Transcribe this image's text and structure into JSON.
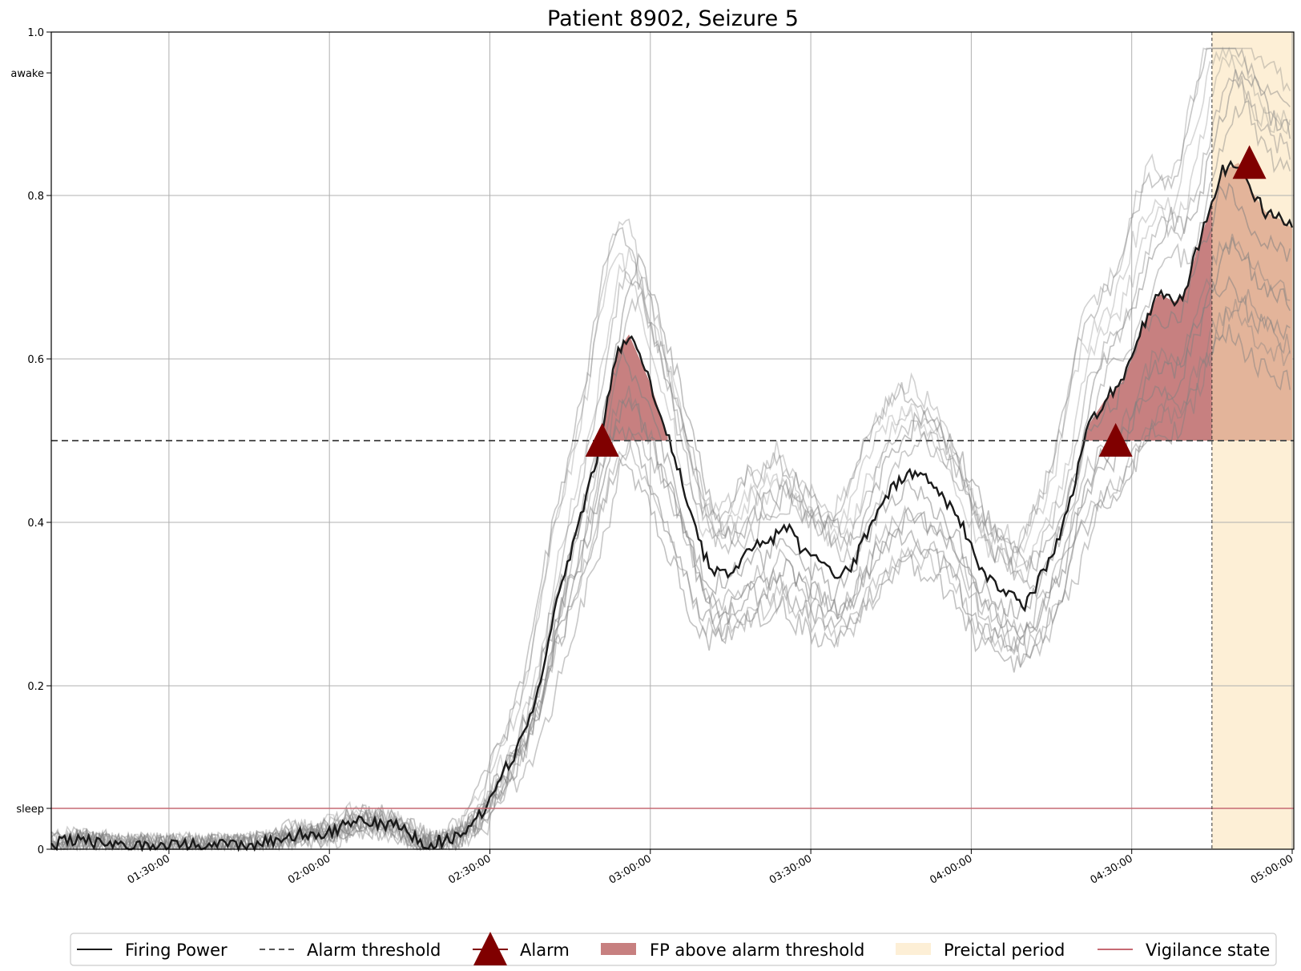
{
  "chart_data": {
    "type": "line",
    "title": "Patient 8902, Seizure 5",
    "xlabel": "",
    "ylabel": "",
    "x_tick_labels": [
      "01:30:00",
      "02:00:00",
      "02:30:00",
      "03:00:00",
      "03:30:00",
      "04:00:00",
      "04:30:00",
      "05:00:00"
    ],
    "x_tick_minutes": [
      90,
      120,
      150,
      180,
      210,
      240,
      270,
      300
    ],
    "xlim_minutes": [
      68,
      300.3
    ],
    "ylim": [
      0,
      1.0
    ],
    "y_ticks": [
      {
        "value": 0.0,
        "label": "0"
      },
      {
        "value": 0.05,
        "label": "sleep"
      },
      {
        "value": 0.2,
        "label": "0.2"
      },
      {
        "value": 0.4,
        "label": "0.4"
      },
      {
        "value": 0.6,
        "label": "0.6"
      },
      {
        "value": 0.8,
        "label": "0.8"
      },
      {
        "value": 0.95,
        "label": "awake"
      },
      {
        "value": 1.0,
        "label": "1.0"
      }
    ],
    "grid": true,
    "alarm_threshold": 0.5,
    "vigilance_state_level": 0.05,
    "preictal_period": {
      "start_minute": 285,
      "end_minute": 300.3
    },
    "alarms": [
      {
        "minute": 171,
        "value": 0.5
      },
      {
        "minute": 267,
        "value": 0.5
      },
      {
        "minute": 292,
        "value": 0.84
      }
    ],
    "firing_power": {
      "x_minutes": [
        68,
        70,
        75,
        80,
        85,
        90,
        95,
        100,
        105,
        110,
        115,
        120,
        125,
        128,
        130,
        132,
        135,
        138,
        140,
        142,
        145,
        147,
        150,
        152,
        155,
        158,
        160,
        162,
        165,
        168,
        170,
        172,
        174,
        176,
        178,
        180,
        182,
        184,
        186,
        188,
        190,
        192,
        195,
        198,
        200,
        202,
        205,
        208,
        210,
        212,
        215,
        218,
        220,
        222,
        225,
        228,
        230,
        232,
        235,
        238,
        240,
        242,
        245,
        248,
        250,
        252,
        255,
        258,
        260,
        262,
        265,
        268,
        270,
        272,
        275,
        278,
        280,
        282,
        285,
        287,
        290,
        292,
        295,
        298,
        300
      ],
      "values": [
        0.0,
        0.01,
        0.01,
        0.005,
        0.005,
        0.005,
        0.005,
        0.005,
        0.005,
        0.01,
        0.02,
        0.02,
        0.035,
        0.035,
        0.03,
        0.03,
        0.02,
        0.0,
        0.01,
        0.01,
        0.02,
        0.03,
        0.06,
        0.09,
        0.12,
        0.17,
        0.22,
        0.29,
        0.36,
        0.43,
        0.48,
        0.55,
        0.61,
        0.63,
        0.6,
        0.57,
        0.53,
        0.49,
        0.45,
        0.4,
        0.36,
        0.34,
        0.34,
        0.36,
        0.38,
        0.37,
        0.4,
        0.37,
        0.36,
        0.35,
        0.33,
        0.35,
        0.38,
        0.41,
        0.44,
        0.46,
        0.46,
        0.45,
        0.43,
        0.4,
        0.37,
        0.34,
        0.32,
        0.31,
        0.3,
        0.32,
        0.36,
        0.41,
        0.47,
        0.52,
        0.55,
        0.57,
        0.6,
        0.64,
        0.68,
        0.67,
        0.68,
        0.73,
        0.79,
        0.83,
        0.84,
        0.81,
        0.78,
        0.77,
        0.76
      ]
    },
    "legend": {
      "position": "bottom",
      "entries": [
        {
          "label": "Firing Power",
          "symbol": "solid-line"
        },
        {
          "label": "Alarm threshold",
          "symbol": "dashed-line"
        },
        {
          "label": "Alarm",
          "symbol": "triangle"
        },
        {
          "label": "FP above alarm threshold",
          "symbol": "filled-box"
        },
        {
          "label": "Preictal period",
          "symbol": "filled-box"
        },
        {
          "label": "Vigilance state",
          "symbol": "solid-line"
        }
      ]
    },
    "colors": {
      "firing_power": "#1a1a1a",
      "firing_power_runs": "#808080",
      "threshold": "#555555",
      "alarm": "#800000",
      "fp_fill": "#c78080",
      "preictal": "#fdefd6",
      "preictal_fp_fill": "#e3b49a",
      "vigilance": "#c66a73",
      "grid": "#b0b0b0"
    }
  }
}
